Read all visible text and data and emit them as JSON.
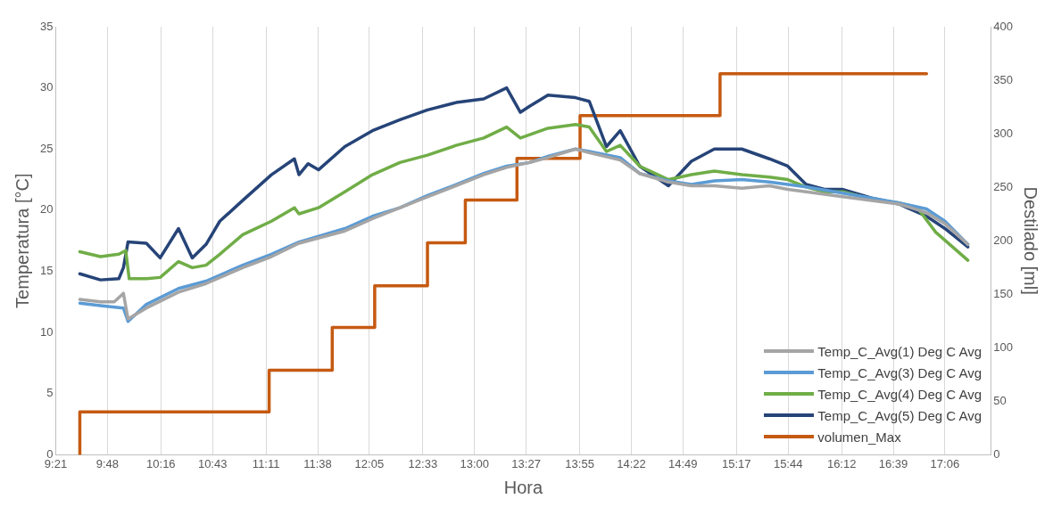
{
  "chart_data": {
    "type": "line",
    "xlabel": "Hora",
    "ylabel": "Temperatura [°C]",
    "y2label": "Destilado [ml]",
    "xlim": [
      9.35,
      17.5
    ],
    "xticks": [
      {
        "value": 9.35,
        "label": "9:21"
      },
      {
        "value": 9.8,
        "label": "9:48"
      },
      {
        "value": 10.2667,
        "label": "10:16"
      },
      {
        "value": 10.7167,
        "label": "10:43"
      },
      {
        "value": 11.1833,
        "label": "11:11"
      },
      {
        "value": 11.6333,
        "label": "11:38"
      },
      {
        "value": 12.0833,
        "label": "12:05"
      },
      {
        "value": 12.55,
        "label": "12:33"
      },
      {
        "value": 13.0,
        "label": "13:00"
      },
      {
        "value": 13.45,
        "label": "13:27"
      },
      {
        "value": 13.9167,
        "label": "13:55"
      },
      {
        "value": 14.3667,
        "label": "14:22"
      },
      {
        "value": 14.8167,
        "label": "14:49"
      },
      {
        "value": 15.2833,
        "label": "15:17"
      },
      {
        "value": 15.7333,
        "label": "15:44"
      },
      {
        "value": 16.2,
        "label": "16:12"
      },
      {
        "value": 16.65,
        "label": "16:39"
      },
      {
        "value": 17.1,
        "label": "17:06"
      }
    ],
    "ylim": [
      0,
      35
    ],
    "yticks": [
      0,
      5,
      10,
      15,
      20,
      25,
      30,
      35
    ],
    "y2lim": [
      0,
      400
    ],
    "y2ticks": [
      0,
      50,
      100,
      150,
      200,
      250,
      300,
      350,
      400
    ],
    "grid": "x",
    "legend": "bottom right",
    "marker": "none",
    "line_style": "solid",
    "series": [
      {
        "name": "Temp_C_Avg(1) Deg C Avg",
        "color": "#a5a5a5",
        "x": [
          9.56,
          9.74,
          9.86,
          9.94,
          9.98,
          10.14,
          10.42,
          10.66,
          10.98,
          11.23,
          11.47,
          11.87,
          12.11,
          12.35,
          12.59,
          12.84,
          13.08,
          13.28,
          13.48,
          13.64,
          13.88,
          14.0,
          14.27,
          14.44,
          14.69,
          14.89,
          15.09,
          15.33,
          15.57,
          15.73,
          15.89,
          16.21,
          16.46,
          16.7,
          16.94,
          17.1,
          17.3
        ],
        "values": [
          12.7,
          12.5,
          12.5,
          13.2,
          11.1,
          12.0,
          13.3,
          14.0,
          15.3,
          16.2,
          17.3,
          18.3,
          19.3,
          20.2,
          21.1,
          22.0,
          22.9,
          23.5,
          23.9,
          24.3,
          25.0,
          24.7,
          24.1,
          23.0,
          22.3,
          22.0,
          22.0,
          21.8,
          22.0,
          21.7,
          21.5,
          21.1,
          20.8,
          20.5,
          19.8,
          18.9,
          17.2
        ]
      },
      {
        "name": "Temp_C_Avg(3) Deg C Avg",
        "color": "#5b9bd5",
        "x": [
          9.56,
          9.74,
          9.94,
          9.98,
          10.14,
          10.42,
          10.66,
          10.98,
          11.23,
          11.47,
          11.87,
          12.11,
          12.35,
          12.59,
          12.84,
          13.08,
          13.28,
          13.48,
          13.64,
          13.88,
          14.0,
          14.27,
          14.44,
          14.69,
          14.89,
          15.09,
          15.33,
          15.57,
          15.73,
          15.89,
          16.21,
          16.46,
          16.7,
          16.94,
          17.1,
          17.3
        ],
        "values": [
          12.4,
          12.2,
          12.0,
          10.9,
          12.3,
          13.6,
          14.2,
          15.5,
          16.4,
          17.4,
          18.5,
          19.5,
          20.2,
          21.2,
          22.1,
          23.0,
          23.6,
          23.9,
          24.4,
          25.0,
          24.8,
          24.3,
          23.0,
          22.4,
          22.1,
          22.4,
          22.5,
          22.3,
          22.1,
          21.9,
          21.4,
          21.0,
          20.6,
          20.1,
          19.1,
          17.2
        ]
      },
      {
        "name": "Temp_C_Avg(4) Deg C Avg",
        "color": "#70ad47",
        "x": [
          9.56,
          9.74,
          9.9,
          9.96,
          9.99,
          10.14,
          10.26,
          10.42,
          10.54,
          10.66,
          10.78,
          10.98,
          11.23,
          11.43,
          11.47,
          11.64,
          11.87,
          12.11,
          12.35,
          12.59,
          12.84,
          13.08,
          13.28,
          13.4,
          13.64,
          13.88,
          14.0,
          14.15,
          14.27,
          14.44,
          14.69,
          14.89,
          15.09,
          15.33,
          15.57,
          15.73,
          15.89,
          16.05,
          16.21,
          16.46,
          16.7,
          16.86,
          17.02,
          17.3
        ],
        "values": [
          16.6,
          16.2,
          16.4,
          16.7,
          14.4,
          14.4,
          14.5,
          15.8,
          15.3,
          15.5,
          16.4,
          18.0,
          19.1,
          20.2,
          19.7,
          20.2,
          21.5,
          22.9,
          23.9,
          24.5,
          25.3,
          25.9,
          26.8,
          25.9,
          26.7,
          27.0,
          26.8,
          24.8,
          25.3,
          23.6,
          22.5,
          22.9,
          23.2,
          22.9,
          22.7,
          22.5,
          21.9,
          21.5,
          21.5,
          20.9,
          20.6,
          20.2,
          18.2,
          15.9
        ]
      },
      {
        "name": "Temp_C_Avg(5) Deg C Avg",
        "color": "#264478",
        "x": [
          9.56,
          9.74,
          9.9,
          9.94,
          9.98,
          10.14,
          10.26,
          10.42,
          10.54,
          10.66,
          10.78,
          10.98,
          11.23,
          11.43,
          11.47,
          11.55,
          11.64,
          11.87,
          12.11,
          12.35,
          12.59,
          12.84,
          13.08,
          13.28,
          13.4,
          13.48,
          13.64,
          13.88,
          14.0,
          14.15,
          14.27,
          14.44,
          14.69,
          14.89,
          15.09,
          15.33,
          15.57,
          15.73,
          15.89,
          16.05,
          16.21,
          16.46,
          16.7,
          16.94,
          17.1,
          17.3
        ],
        "values": [
          14.8,
          14.3,
          14.4,
          15.3,
          17.4,
          17.3,
          16.1,
          18.5,
          16.1,
          17.2,
          19.1,
          20.8,
          22.9,
          24.2,
          22.9,
          23.8,
          23.3,
          25.2,
          26.5,
          27.4,
          28.2,
          28.8,
          29.1,
          30.0,
          28.0,
          28.5,
          29.4,
          29.2,
          28.9,
          25.2,
          26.5,
          23.6,
          22.0,
          24.0,
          25.0,
          25.0,
          24.2,
          23.6,
          22.1,
          21.7,
          21.7,
          21.0,
          20.5,
          19.5,
          18.5,
          17.0
        ]
      },
      {
        "name": "volumen_Max",
        "type": "step",
        "axis": "y2",
        "color": "#c55a11",
        "x": [
          9.56,
          11.21,
          11.76,
          12.13,
          12.59,
          12.92,
          13.37,
          13.92,
          15.14,
          16.7,
          16.94
        ],
        "values": [
          0,
          40,
          79,
          119,
          158,
          198,
          238,
          277,
          317,
          356,
          356
        ]
      }
    ]
  }
}
